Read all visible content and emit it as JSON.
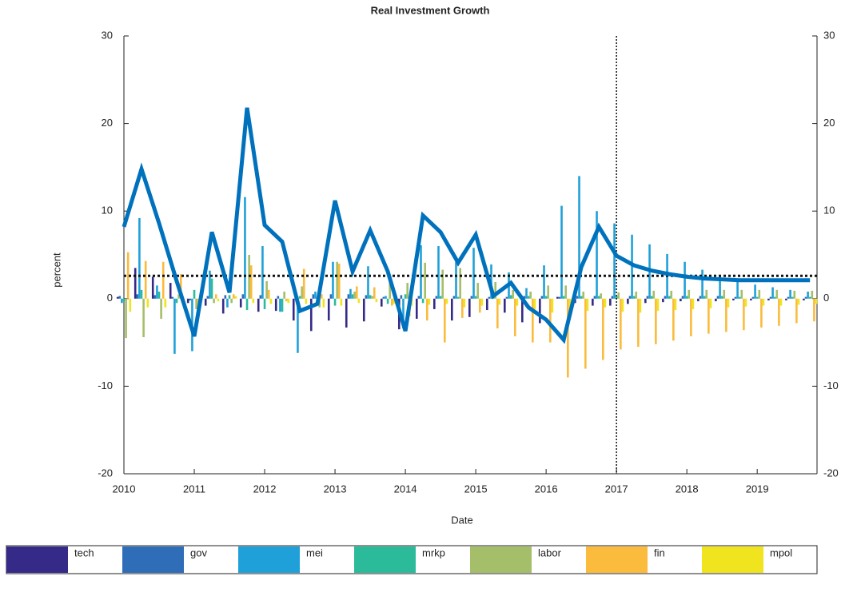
{
  "chart_data": {
    "type": "bar",
    "title": "Real Investment Growth",
    "x_label": "Date",
    "y_label": "percent",
    "x": [
      2010,
      2010.25,
      2010.5,
      2010.75,
      2011,
      2011.25,
      2011.5,
      2011.75,
      2012,
      2012.25,
      2012.5,
      2012.75,
      2013,
      2013.25,
      2013.5,
      2013.75,
      2014,
      2014.25,
      2014.5,
      2014.75,
      2015,
      2015.25,
      2015.5,
      2015.75,
      2016,
      2016.25,
      2016.5,
      2016.75,
      2017,
      2017.25,
      2017.5,
      2017.75,
      2018,
      2018.25,
      2018.5,
      2018.75,
      2019,
      2019.25,
      2019.5,
      2019.75
    ],
    "xlim": [
      2010,
      2019.85
    ],
    "xticks": [
      2010,
      2011,
      2012,
      2013,
      2014,
      2015,
      2016,
      2017,
      2018,
      2019
    ],
    "ylim": [
      -20,
      30
    ],
    "yticks": [
      -20,
      -10,
      0,
      10,
      20,
      30
    ],
    "legend": "bottom",
    "grid": false,
    "hline": 2.6,
    "vline": 2017,
    "series": [
      {
        "name": "tech",
        "color": "#352a87",
        "values": [
          0.2,
          3.5,
          2.5,
          1.8,
          -0.5,
          -0.8,
          -1.7,
          -1.0,
          -1.5,
          -1.4,
          -2.5,
          -3.7,
          -2.5,
          -3.3,
          -2.6,
          -0.9,
          -3.5,
          -2.3,
          -1.2,
          -2.5,
          -2.1,
          -1.3,
          -1.6,
          -2.7,
          -2.8,
          0.2,
          -0.5,
          -0.8,
          -0.8,
          -0.6,
          -0.5,
          -0.4,
          -0.3,
          -0.3,
          -0.3,
          -0.2,
          -0.2,
          -0.2,
          -0.2,
          -0.2
        ]
      },
      {
        "name": "gov",
        "color": "#2f6db8",
        "values": [
          0.3,
          0.5,
          0.4,
          0.2,
          -0.2,
          0.3,
          0.4,
          0.5,
          0.4,
          0.3,
          0.3,
          0.5,
          0.5,
          0.5,
          0.4,
          0.2,
          0.4,
          0.3,
          0.3,
          0.3,
          0.3,
          0.2,
          0.2,
          0.3,
          0.3,
          0.2,
          0.3,
          0.3,
          0.3,
          0.3,
          0.3,
          0.3,
          0.3,
          0.3,
          0.3,
          0.2,
          0.2,
          0.2,
          0.2,
          0.2
        ]
      },
      {
        "name": "mei",
        "color": "#1fa0d8",
        "values": [
          -0.5,
          9.2,
          1.5,
          -6.3,
          -6.0,
          3.2,
          -1.0,
          11.6,
          6.0,
          -1.5,
          -6.2,
          0.8,
          4.2,
          1.1,
          3.7,
          0.3,
          -3.4,
          6.1,
          6.0,
          4.2,
          5.8,
          3.9,
          3.0,
          1.2,
          3.8,
          10.6,
          14.0,
          10.0,
          8.6,
          7.3,
          6.2,
          5.1,
          4.2,
          3.3,
          2.6,
          2.0,
          1.6,
          1.3,
          1.0,
          0.8
        ]
      },
      {
        "name": "mrkp",
        "color": "#2bbb9a",
        "values": [
          -0.3,
          1.0,
          0.8,
          -0.5,
          1.0,
          2.3,
          0.4,
          -1.3,
          -1.2,
          -1.5,
          0.3,
          -0.4,
          -0.8,
          0.5,
          0.4,
          -0.6,
          0.5,
          -0.5,
          0.3,
          0.2,
          0.3,
          0.3,
          0.4,
          0.3,
          0.3,
          0.3,
          0.3,
          0.3,
          0.3,
          0.3,
          0.3,
          0.3,
          0.3,
          0.3,
          0.3,
          0.2,
          0.2,
          0.2,
          0.2,
          0.2
        ]
      },
      {
        "name": "labor",
        "color": "#a5be6a",
        "values": [
          -4.5,
          -4.4,
          -2.3,
          0.5,
          -1.2,
          -0.5,
          -0.5,
          5.0,
          2.0,
          0.8,
          1.4,
          -1.0,
          4.2,
          0.8,
          0.3,
          2.3,
          1.8,
          4.1,
          3.3,
          3.5,
          1.8,
          1.9,
          1.0,
          0.8,
          1.5,
          1.5,
          0.8,
          0.6,
          0.7,
          0.8,
          0.9,
          0.9,
          1.0,
          1.0,
          1.0,
          1.0,
          1.0,
          1.0,
          0.9,
          0.9
        ]
      },
      {
        "name": "fin",
        "color": "#fbbb3c",
        "values": [
          5.3,
          4.3,
          4.2,
          2.8,
          -0.8,
          0.5,
          0.5,
          3.8,
          1.0,
          -0.3,
          3.4,
          0.5,
          4.0,
          1.4,
          1.3,
          -0.8,
          -2.0,
          -2.5,
          -5.0,
          -2.2,
          -1.6,
          -3.4,
          -4.3,
          -5.0,
          -5.0,
          -9.0,
          -8.0,
          -7.0,
          -5.8,
          -5.5,
          -5.2,
          -4.8,
          -4.3,
          -4.0,
          -3.8,
          -3.6,
          -3.3,
          -3.1,
          -2.8,
          -2.6
        ]
      },
      {
        "name": "mpol",
        "color": "#f0e41f",
        "values": [
          -1.5,
          -1.0,
          -1.0,
          -0.5,
          -0.7,
          -0.3,
          0.3,
          -0.5,
          -0.6,
          -0.5,
          -0.6,
          -1.0,
          -0.8,
          -0.5,
          -0.4,
          -0.6,
          -0.8,
          -0.7,
          -0.6,
          -1.0,
          -0.8,
          -0.7,
          -0.8,
          -1.2,
          -1.6,
          -2.0,
          -1.4,
          -1.0,
          -1.5,
          -1.6,
          -1.4,
          -1.3,
          -1.2,
          -1.1,
          -1.0,
          -0.9,
          -0.8,
          -0.8,
          -0.7,
          -0.6
        ]
      }
    ],
    "line": {
      "color": "#0072bd",
      "values": [
        8.2,
        14.8,
        8.6,
        2.0,
        -4.3,
        7.6,
        0.7,
        21.8,
        8.4,
        6.5,
        -1.4,
        -0.6,
        11.2,
        3.1,
        7.8,
        3.1,
        -3.7,
        9.5,
        7.6,
        4.1,
        7.3,
        0.3,
        1.8,
        -1.0,
        -2.4,
        -4.7,
        3.6,
        8.2,
        4.9,
        3.8,
        3.2,
        2.8,
        2.5,
        2.3,
        2.2,
        2.1,
        2.1,
        2.1,
        2.1,
        2.1
      ]
    }
  }
}
